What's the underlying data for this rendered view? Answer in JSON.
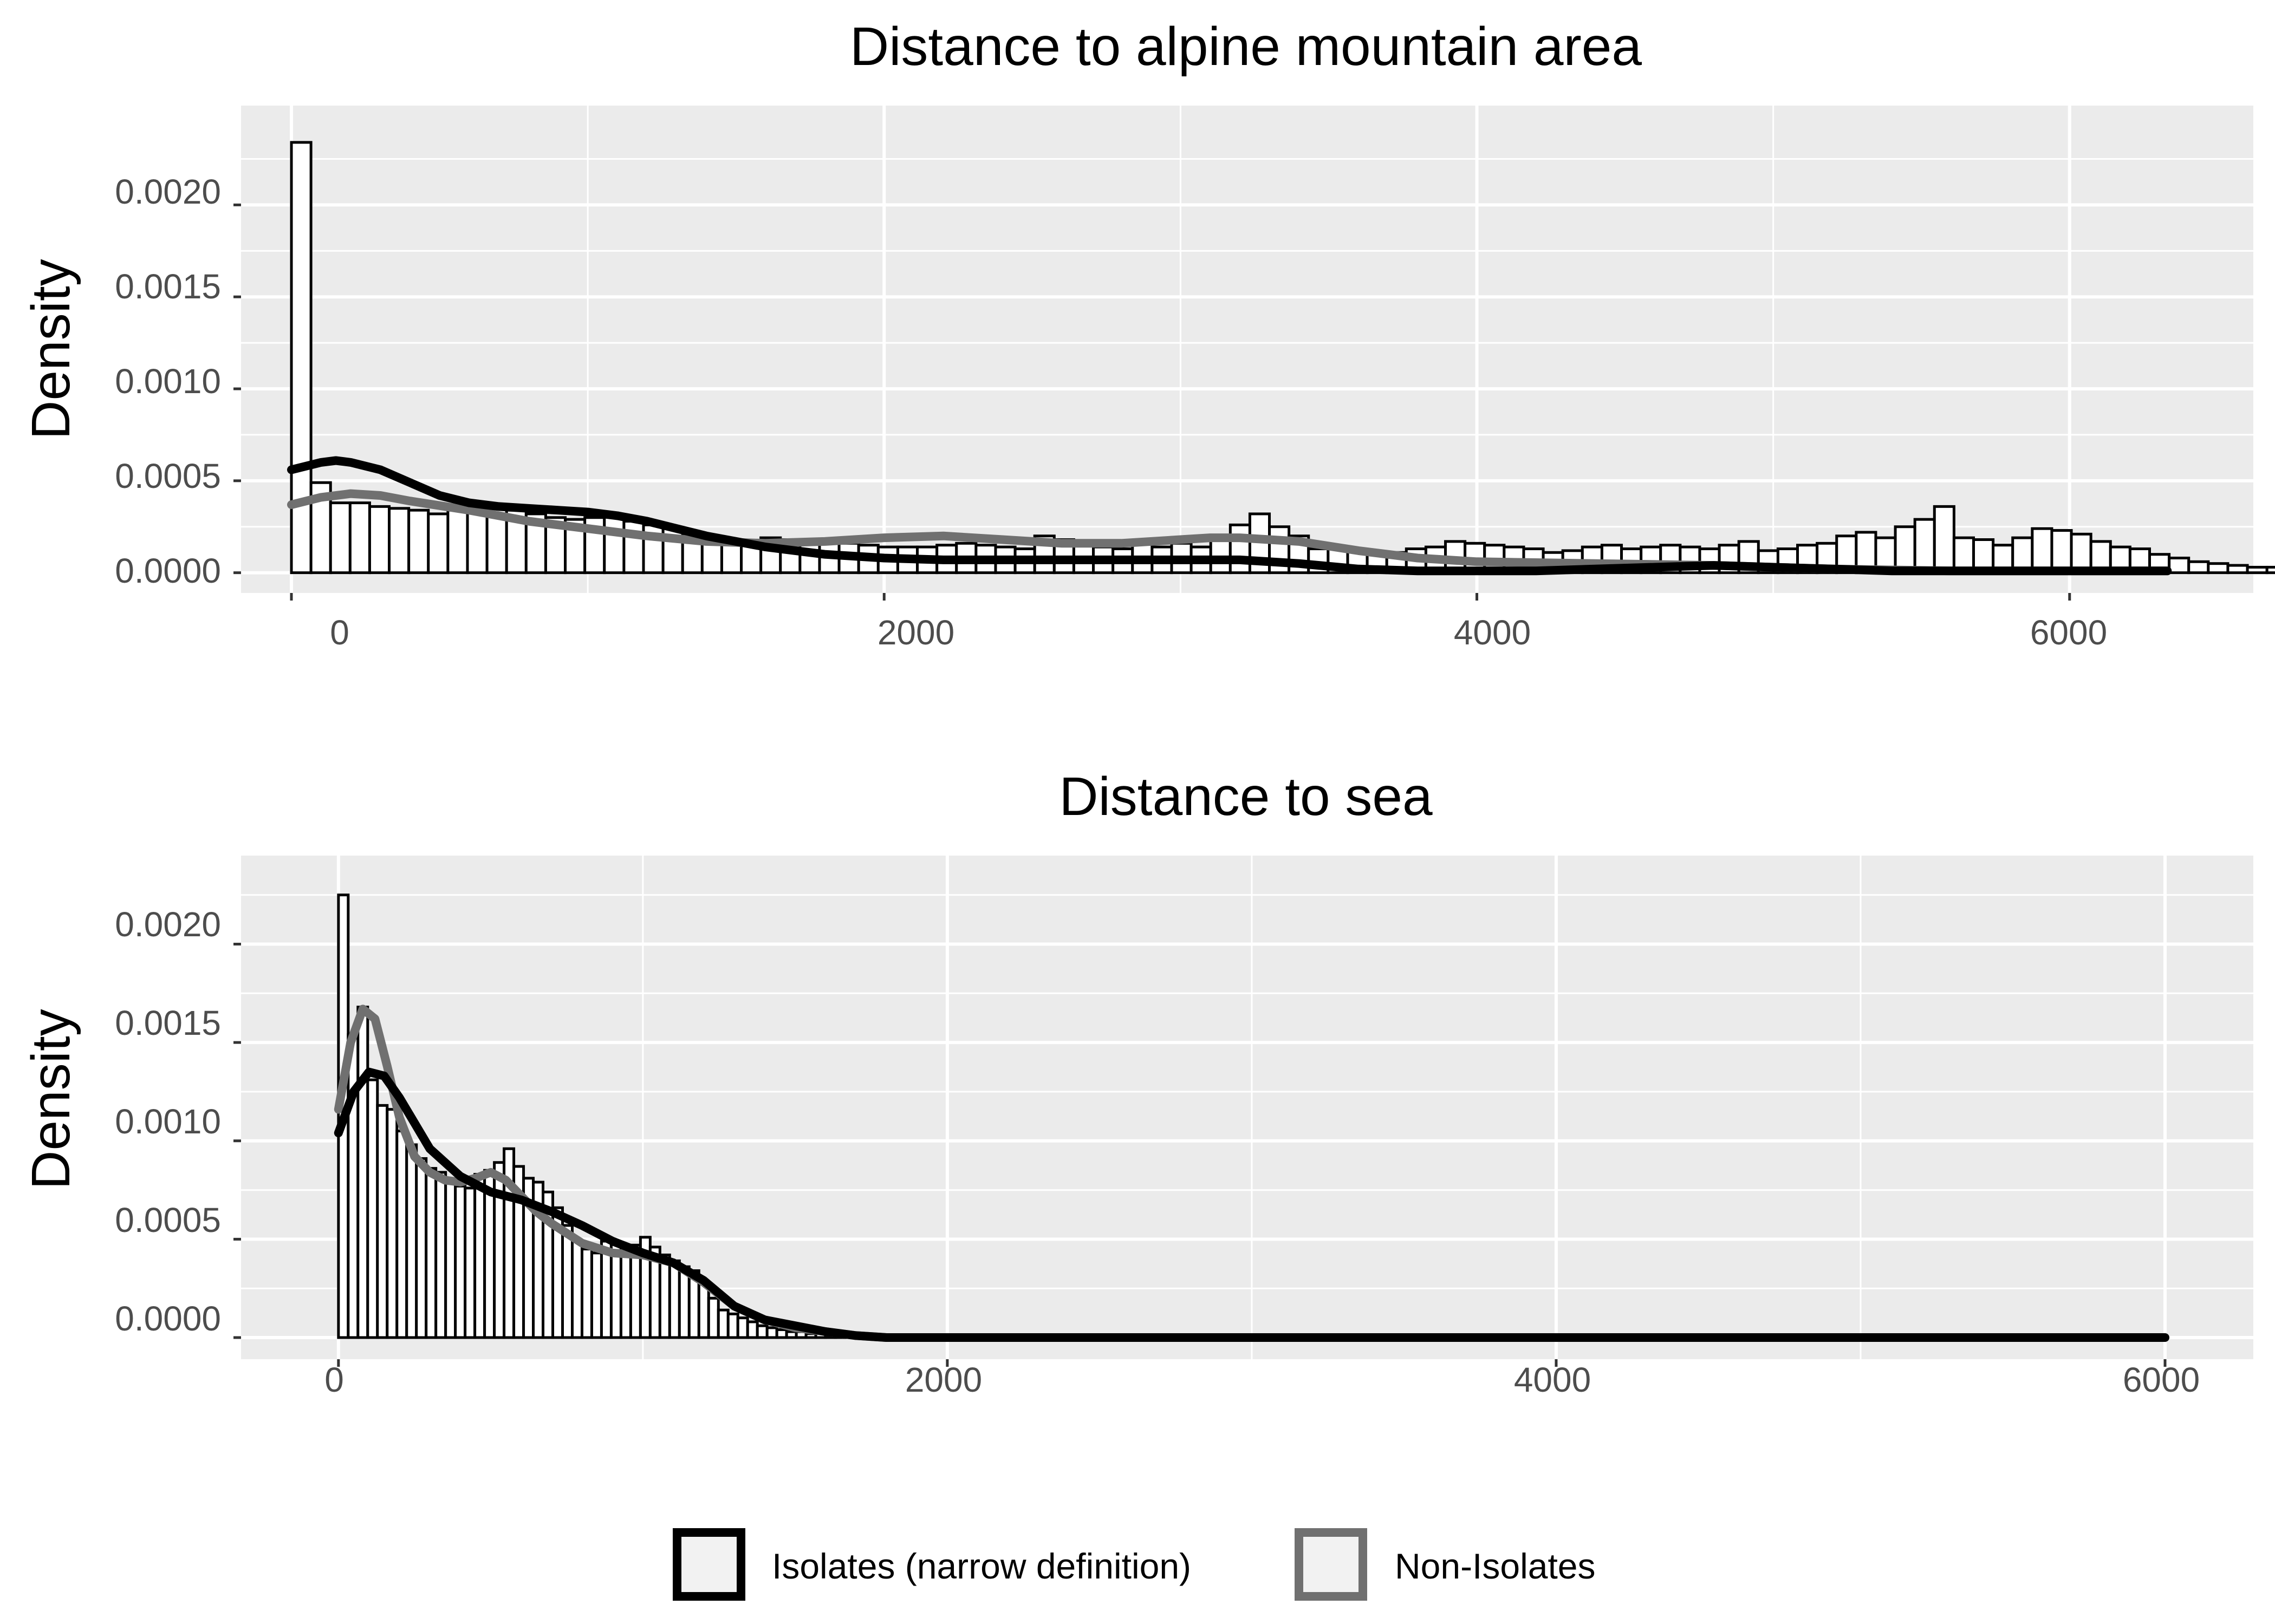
{
  "chart_data": [
    {
      "type": "histogram",
      "title": "Distance to alpine mountain area",
      "xlabel": "",
      "ylabel": "Density",
      "xlim": [
        -170,
        6620
      ],
      "ylim": [
        -0.00011,
        0.00254
      ],
      "x_ticks": [
        0,
        2000,
        4000,
        6000
      ],
      "x_tick_labels": [
        "0",
        "2000",
        "4000",
        "6000"
      ],
      "y_ticks": [
        0.0,
        0.0005,
        0.001,
        0.0015,
        0.002
      ],
      "y_tick_labels": [
        "0.0000",
        "0.0005",
        "0.0010",
        "0.0015",
        "0.0020"
      ],
      "grid": true,
      "bin_width": 66,
      "bin_start": 0,
      "histogram": [
        0.00234,
        0.00049,
        0.00038,
        0.00038,
        0.00036,
        0.00035,
        0.00034,
        0.00032,
        0.00034,
        0.00035,
        0.00036,
        0.00034,
        0.00032,
        0.0003,
        0.00029,
        0.0003,
        0.00031,
        0.00028,
        0.00026,
        0.00024,
        0.0002,
        0.00017,
        0.00016,
        0.00017,
        0.00019,
        0.00018,
        0.00017,
        0.00016,
        0.00016,
        0.00015,
        0.00014,
        0.00014,
        0.00014,
        0.00015,
        0.00016,
        0.00015,
        0.00014,
        0.00013,
        0.0002,
        0.00018,
        0.00015,
        0.00014,
        0.00013,
        0.00016,
        0.00014,
        0.00016,
        0.00014,
        0.00018,
        0.00026,
        0.00032,
        0.00025,
        0.0002,
        0.00013,
        0.00014,
        0.00012,
        0.0001,
        0.00011,
        0.00013,
        0.00014,
        0.00017,
        0.00016,
        0.00015,
        0.00014,
        0.00013,
        0.00011,
        0.00012,
        0.00014,
        0.00015,
        0.00013,
        0.00014,
        0.00015,
        0.00014,
        0.00013,
        0.00015,
        0.00017,
        0.00012,
        0.00013,
        0.00015,
        0.00016,
        0.0002,
        0.00022,
        0.00019,
        0.00025,
        0.00029,
        0.00036,
        0.00019,
        0.00018,
        0.00015,
        0.00019,
        0.00024,
        0.00023,
        0.00021,
        0.00017,
        0.00014,
        0.00013,
        0.0001,
        8e-05,
        6e-05,
        5e-05,
        4e-05,
        3e-05,
        3e-05,
        2e-05,
        3e-05,
        3e-05,
        2e-05,
        3e-05,
        2e-05,
        2e-05,
        2e-05,
        2e-05,
        2e-05,
        2e-05,
        3e-05,
        4e-05,
        3e-05,
        4e-05,
        4e-05,
        4e-05,
        3e-05,
        3e-05,
        3e-05,
        3e-05,
        3e-05,
        3e-05,
        4e-05,
        3e-05,
        0.00012,
        3e-05,
        2e-05,
        2e-05,
        2e-05,
        2e-05,
        2e-05,
        2e-05,
        2e-05,
        3e-05,
        3e-05,
        3e-05,
        3e-05,
        3e-05,
        3e-05,
        3e-05,
        3e-05,
        3e-05,
        3e-05,
        3e-05,
        4e-05,
        5e-05,
        6e-05,
        7e-05,
        9e-05,
        8e-05,
        4e-05,
        3e-05,
        2e-05,
        2e-05,
        1e-05,
        1e-05,
        1e-05,
        1e-05,
        1e-05,
        1e-05,
        1e-05,
        1e-05,
        1e-05,
        1e-05,
        1e-05,
        1e-05,
        1e-05,
        1e-05,
        1e-05,
        1e-05,
        1e-05,
        1e-05,
        1e-05,
        1e-05,
        1e-05,
        1e-05,
        1e-05,
        1e-05,
        1e-05,
        1e-05,
        1e-05,
        1e-05,
        1e-05,
        5e-05,
        1e-05,
        1e-05,
        1e-05,
        1e-05,
        1e-05,
        1e-05
      ],
      "series": [
        {
          "name": "Isolates (narrow definition)",
          "type": "density",
          "color": "#000000",
          "x": [
            0,
            100,
            150,
            200,
            300,
            400,
            500,
            600,
            700,
            800,
            900,
            1000,
            1100,
            1200,
            1300,
            1400,
            1500,
            1600,
            1700,
            1800,
            1900,
            2000,
            2200,
            2400,
            2600,
            2800,
            3000,
            3200,
            3400,
            3600,
            3800,
            4000,
            4200,
            4400,
            4600,
            4800,
            5000,
            5200,
            5400,
            5600,
            5800,
            6000,
            6330
          ],
          "y": [
            0.00056,
            0.0006,
            0.00061,
            0.0006,
            0.00056,
            0.00049,
            0.00042,
            0.00038,
            0.00036,
            0.00035,
            0.00034,
            0.00033,
            0.00031,
            0.00028,
            0.00024,
            0.0002,
            0.00017,
            0.00014,
            0.00012,
            0.0001,
            9e-05,
            8e-05,
            7e-05,
            7e-05,
            7e-05,
            7e-05,
            7e-05,
            7e-05,
            5e-05,
            2e-05,
            1e-05,
            1e-05,
            1e-05,
            2e-05,
            3e-05,
            4e-05,
            3e-05,
            2e-05,
            1e-05,
            1e-05,
            1e-05,
            1e-05,
            1e-05
          ]
        },
        {
          "name": "Non-Isolates",
          "type": "density",
          "color": "#707070",
          "x": [
            0,
            100,
            200,
            300,
            400,
            600,
            800,
            1000,
            1200,
            1400,
            1600,
            1800,
            2000,
            2200,
            2400,
            2600,
            2800,
            3000,
            3100,
            3200,
            3400,
            3600,
            3800,
            4000,
            4400,
            4800,
            5200,
            5600,
            6000,
            6330
          ],
          "y": [
            0.00037,
            0.00041,
            0.00043,
            0.00042,
            0.00039,
            0.00034,
            0.00028,
            0.00024,
            0.0002,
            0.00017,
            0.00016,
            0.00017,
            0.00019,
            0.0002,
            0.00018,
            0.00016,
            0.00016,
            0.00018,
            0.00019,
            0.00019,
            0.00017,
            0.00012,
            8e-05,
            6e-05,
            5e-05,
            4e-05,
            2e-05,
            1e-05,
            1e-05,
            1e-05
          ]
        }
      ]
    },
    {
      "type": "histogram",
      "title": "Distance to sea",
      "xlabel": "",
      "ylabel": "Density",
      "xlim": [
        -320,
        6290
      ],
      "ylim": [
        -0.00011,
        0.00245
      ],
      "x_ticks": [
        0,
        2000,
        4000,
        6000
      ],
      "x_tick_labels": [
        "0",
        "2000",
        "4000",
        "6000"
      ],
      "y_ticks": [
        0.0,
        0.0005,
        0.001,
        0.0015,
        0.002
      ],
      "y_tick_labels": [
        "0.0000",
        "0.0005",
        "0.0010",
        "0.0015",
        "0.0020"
      ],
      "grid": true,
      "bin_width": 32,
      "bin_start": 0,
      "histogram": [
        0.00225,
        0.00154,
        0.00168,
        0.00131,
        0.00118,
        0.00116,
        0.00105,
        0.00098,
        0.00091,
        0.00086,
        0.00084,
        0.0008,
        0.00077,
        0.00076,
        0.00083,
        0.00085,
        0.00089,
        0.00096,
        0.00087,
        0.00081,
        0.00079,
        0.00074,
        0.00066,
        0.00057,
        0.00049,
        0.00045,
        0.00043,
        0.00049,
        0.00048,
        0.00044,
        0.00047,
        0.00051,
        0.00046,
        0.00042,
        0.00039,
        0.00036,
        0.00034,
        0.00028,
        0.0002,
        0.00014,
        0.00012,
        0.0001,
        8e-05,
        6e-05,
        5e-05,
        4e-05,
        3e-05,
        3e-05,
        2e-05,
        2e-05,
        1e-05,
        1e-05,
        1e-05,
        1e-05,
        1e-05,
        1e-05
      ],
      "series": [
        {
          "name": "Isolates (narrow definition)",
          "type": "density",
          "color": "#000000",
          "x": [
            0,
            50,
            100,
            150,
            200,
            300,
            400,
            500,
            600,
            700,
            800,
            900,
            1000,
            1100,
            1200,
            1300,
            1400,
            1500,
            1600,
            1700,
            1800,
            2000,
            2500,
            3000,
            4000,
            5000,
            6000
          ],
          "y": [
            0.00104,
            0.00125,
            0.00135,
            0.00133,
            0.00122,
            0.00096,
            0.00082,
            0.00074,
            0.0007,
            0.00064,
            0.00057,
            0.00049,
            0.00043,
            0.00038,
            0.00029,
            0.00016,
            9e-05,
            6e-05,
            3e-05,
            1e-05,
            0.0,
            0.0,
            0.0,
            0.0,
            0.0,
            0.0,
            0.0
          ]
        },
        {
          "name": "Non-Isolates",
          "type": "density",
          "color": "#707070",
          "x": [
            0,
            40,
            80,
            120,
            160,
            200,
            250,
            300,
            350,
            400,
            450,
            500,
            550,
            600,
            650,
            700,
            800,
            900,
            1000,
            1100,
            1200,
            1300,
            1400,
            1500,
            1600,
            1700,
            1800,
            2000
          ],
          "y": [
            0.00116,
            0.0015,
            0.00167,
            0.00162,
            0.00138,
            0.00112,
            0.00092,
            0.00084,
            0.0008,
            0.00079,
            0.00081,
            0.00084,
            0.0008,
            0.00072,
            0.00064,
            0.00058,
            0.00048,
            0.00043,
            0.00042,
            0.00038,
            0.00028,
            0.00016,
            9e-05,
            5e-05,
            3e-05,
            1e-05,
            0.0,
            0.0
          ]
        }
      ]
    }
  ],
  "legend": {
    "items": [
      {
        "label": "Isolates (narrow definition)",
        "color": "#000000"
      },
      {
        "label": "Non-Isolates",
        "color": "#707070"
      }
    ]
  },
  "colors": {
    "panel_bg": "#EBEBEB",
    "grid": "#FFFFFF",
    "bar_fill": "#FFFFFF",
    "bar_stroke": "#000000"
  }
}
